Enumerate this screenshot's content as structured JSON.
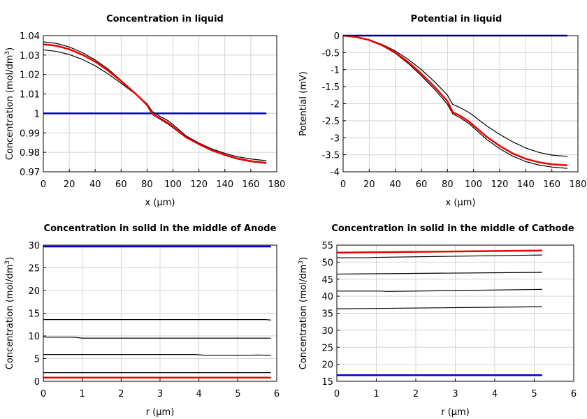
{
  "chart_data": [
    {
      "type": "line",
      "title": "Concentration in liquid",
      "xlabel": "x (µm)",
      "ylabel": "Concentration (mol/dm",
      "ylabel_sup": "3",
      "ylabel_tail": ")",
      "xlim": [
        0,
        180
      ],
      "ylim": [
        0.97,
        1.04
      ],
      "xticks": [
        0,
        20,
        40,
        60,
        80,
        100,
        120,
        140,
        160,
        180
      ],
      "yticks": [
        0.97,
        0.98,
        0.99,
        1,
        1.01,
        1.02,
        1.03,
        1.04
      ],
      "ytick_labels": [
        "0.97",
        "0.98",
        "0.99",
        "1",
        "1.01",
        "1.02",
        "1.03",
        "1.04"
      ],
      "grid": true,
      "series": [
        {
          "color": "#0000cc",
          "width": 2.5,
          "x": [
            0,
            172
          ],
          "y": [
            1.0,
            1.0
          ]
        },
        {
          "color": "#000000",
          "width": 1.2,
          "x": [
            0,
            10,
            20,
            30,
            40,
            50,
            60,
            70,
            80,
            84,
            90,
            97,
            110,
            120,
            130,
            140,
            150,
            160,
            172
          ],
          "y": [
            1.0327,
            1.0319,
            1.0303,
            1.0278,
            1.0245,
            1.0203,
            1.0155,
            1.0105,
            1.005,
            1.001,
            0.9985,
            0.996,
            0.9885,
            0.9848,
            0.9818,
            0.9795,
            0.9777,
            0.9766,
            0.9757
          ]
        },
        {
          "color": "#000000",
          "width": 1.2,
          "x": [
            0,
            10,
            20,
            30,
            40,
            50,
            60,
            70,
            80,
            84,
            90,
            97,
            110,
            120,
            130,
            140,
            150,
            160,
            172
          ],
          "y": [
            1.0368,
            1.036,
            1.0342,
            1.0313,
            1.0275,
            1.0228,
            1.017,
            1.011,
            1.004,
            0.9995,
            0.997,
            0.9942,
            0.9875,
            0.984,
            0.9808,
            0.9784,
            0.9765,
            0.9752,
            0.9743
          ]
        },
        {
          "color": "#ee0000",
          "width": 2.5,
          "x": [
            0,
            10,
            20,
            30,
            40,
            50,
            60,
            70,
            80,
            84,
            90,
            97,
            110,
            120,
            130,
            140,
            150,
            160,
            172
          ],
          "y": [
            1.0355,
            1.0348,
            1.033,
            1.0302,
            1.0266,
            1.022,
            1.0166,
            1.0108,
            1.0045,
            0.9998,
            0.9975,
            0.9948,
            0.9878,
            0.9842,
            0.9811,
            0.9787,
            0.9768,
            0.9755,
            0.9746
          ]
        }
      ]
    },
    {
      "type": "line",
      "title": "Potential in liquid",
      "xlabel": "x (µm)",
      "ylabel": "Potential (mV)",
      "ylabel_sup": "",
      "ylabel_tail": "",
      "xlim": [
        0,
        180
      ],
      "ylim": [
        -4,
        0
      ],
      "xticks": [
        0,
        20,
        40,
        60,
        80,
        100,
        120,
        140,
        160,
        180
      ],
      "yticks": [
        -4,
        -3.5,
        -3,
        -2.5,
        -2,
        -1.5,
        -1,
        -0.5,
        0
      ],
      "ytick_labels": [
        "-4",
        "-3.5",
        "-3",
        "-2.5",
        "-2",
        "-1.5",
        "-1",
        "-0.5",
        "0"
      ],
      "grid": true,
      "series": [
        {
          "color": "#0000cc",
          "width": 2.5,
          "x": [
            0,
            172
          ],
          "y": [
            0,
            0
          ]
        },
        {
          "color": "#000000",
          "width": 1.2,
          "x": [
            0,
            10,
            20,
            30,
            40,
            50,
            60,
            70,
            80,
            84,
            90,
            97,
            110,
            120,
            130,
            140,
            150,
            160,
            172
          ],
          "y": [
            0,
            -0.04,
            -0.14,
            -0.3,
            -0.52,
            -0.82,
            -1.18,
            -1.57,
            -2.02,
            -2.3,
            -2.42,
            -2.6,
            -3.05,
            -3.32,
            -3.54,
            -3.7,
            -3.8,
            -3.86,
            -3.9
          ]
        },
        {
          "color": "#000000",
          "width": 1.2,
          "x": [
            0,
            10,
            20,
            30,
            40,
            50,
            60,
            70,
            80,
            84,
            90,
            97,
            110,
            120,
            130,
            140,
            150,
            160,
            172
          ],
          "y": [
            0,
            -0.03,
            -0.12,
            -0.26,
            -0.45,
            -0.7,
            -1.0,
            -1.35,
            -1.75,
            -2.02,
            -2.12,
            -2.27,
            -2.65,
            -2.9,
            -3.12,
            -3.3,
            -3.43,
            -3.51,
            -3.55
          ]
        },
        {
          "color": "#ee0000",
          "width": 2.5,
          "x": [
            0,
            10,
            20,
            30,
            40,
            50,
            60,
            70,
            80,
            84,
            90,
            97,
            110,
            120,
            130,
            140,
            150,
            160,
            172
          ],
          "y": [
            0,
            -0.04,
            -0.13,
            -0.28,
            -0.5,
            -0.78,
            -1.12,
            -1.5,
            -1.93,
            -2.25,
            -2.36,
            -2.54,
            -2.97,
            -3.24,
            -3.46,
            -3.62,
            -3.72,
            -3.78,
            -3.81
          ]
        }
      ]
    },
    {
      "type": "line",
      "title": "Concentration in solid in the middle of Anode",
      "xlabel": "r (µm)",
      "ylabel": "Concentration (mol/dm",
      "ylabel_sup": "3",
      "ylabel_tail": ")",
      "xlim": [
        0,
        6
      ],
      "ylim": [
        0,
        30
      ],
      "xticks": [
        0,
        1,
        2,
        3,
        4,
        5,
        6
      ],
      "yticks": [
        0,
        5,
        10,
        15,
        20,
        25,
        30
      ],
      "ytick_labels": [
        "0",
        "5",
        "10",
        "15",
        "20",
        "25",
        "30"
      ],
      "grid": true,
      "series": [
        {
          "color": "#0000cc",
          "width": 2.5,
          "x": [
            0,
            5.85
          ],
          "y": [
            29.7,
            29.7
          ]
        },
        {
          "color": "#000000",
          "width": 1.2,
          "x": [
            0,
            5.7,
            5.85
          ],
          "y": [
            13.6,
            13.6,
            13.5
          ]
        },
        {
          "color": "#000000",
          "width": 1.2,
          "x": [
            0,
            0.1,
            0.8,
            1.0,
            5.85
          ],
          "y": [
            9.8,
            9.7,
            9.7,
            9.5,
            9.5
          ]
        },
        {
          "color": "#000000",
          "width": 1.2,
          "x": [
            0,
            3.9,
            4.2,
            5.2,
            5.5,
            5.85
          ],
          "y": [
            5.9,
            5.9,
            5.7,
            5.7,
            5.8,
            5.7
          ]
        },
        {
          "color": "#000000",
          "width": 1.2,
          "x": [
            0,
            5.85
          ],
          "y": [
            1.9,
            1.9
          ]
        },
        {
          "color": "#ee0000",
          "width": 2.5,
          "x": [
            0,
            5.85
          ],
          "y": [
            0.8,
            0.8
          ]
        }
      ]
    },
    {
      "type": "line",
      "title": "Concentration in solid in the middle of Cathode",
      "xlabel": "r (µm)",
      "ylabel": "Concentration (mol/dm",
      "ylabel_sup": "3",
      "ylabel_tail": ")",
      "xlim": [
        0,
        6
      ],
      "ylim": [
        15,
        55
      ],
      "xticks": [
        0,
        1,
        2,
        3,
        4,
        5,
        6
      ],
      "yticks": [
        15,
        20,
        25,
        30,
        35,
        40,
        45,
        50,
        55
      ],
      "ytick_labels": [
        "15",
        "20",
        "25",
        "30",
        "35",
        "40",
        "45",
        "50",
        "55"
      ],
      "grid": true,
      "series": [
        {
          "color": "#0000cc",
          "width": 2.5,
          "x": [
            0,
            5.2
          ],
          "y": [
            16.8,
            16.8
          ]
        },
        {
          "color": "#000000",
          "width": 1.2,
          "x": [
            0,
            1.0,
            5.2
          ],
          "y": [
            36.3,
            36.4,
            36.9
          ]
        },
        {
          "color": "#000000",
          "width": 1.2,
          "x": [
            0,
            1.1,
            1.3,
            5.2
          ],
          "y": [
            41.5,
            41.5,
            41.4,
            42.0
          ]
        },
        {
          "color": "#000000",
          "width": 1.2,
          "x": [
            0,
            5.2
          ],
          "y": [
            46.5,
            47.0
          ]
        },
        {
          "color": "#000000",
          "width": 1.2,
          "x": [
            0,
            0.7,
            1.0,
            5.2
          ],
          "y": [
            51.3,
            51.3,
            51.4,
            52.1
          ]
        },
        {
          "color": "#ee0000",
          "width": 2.5,
          "x": [
            0,
            5.2
          ],
          "y": [
            52.8,
            53.4
          ]
        }
      ]
    }
  ]
}
